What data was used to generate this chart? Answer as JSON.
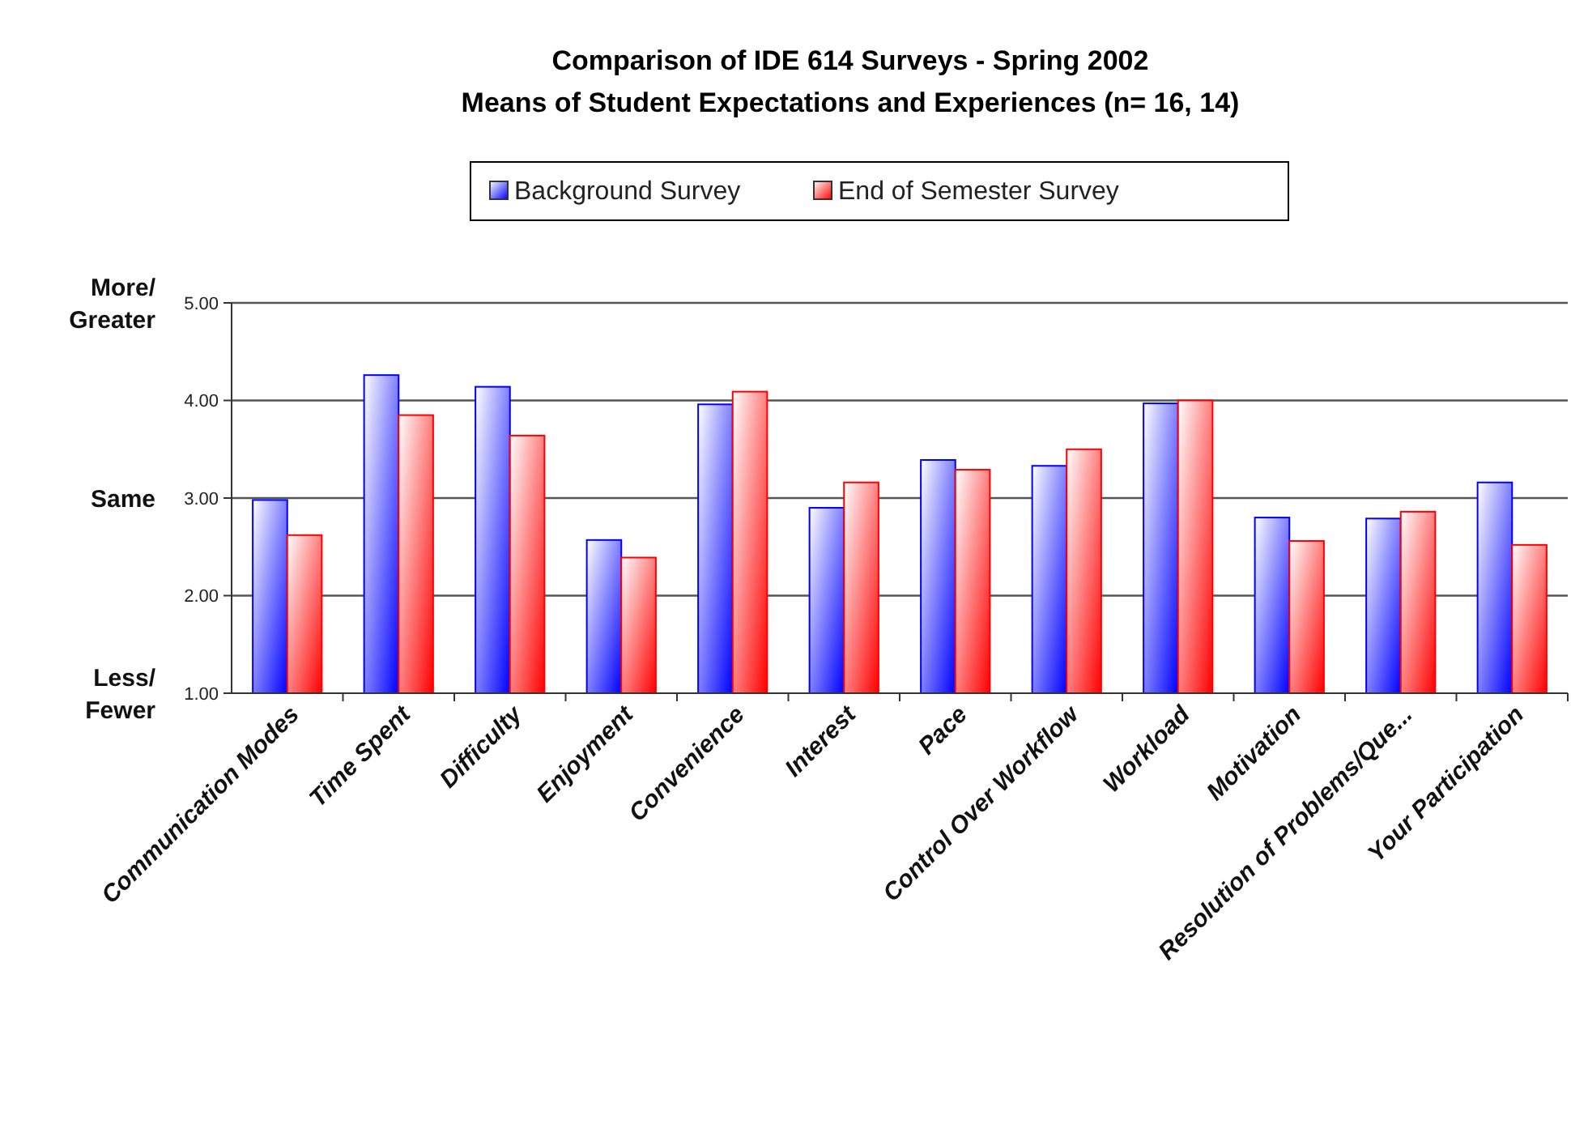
{
  "chart_data": {
    "type": "bar",
    "title": "Comparison of IDE 614 Surveys - Spring 2002",
    "subtitle": "Means of Student Expectations and Experiences (n= 16, 14)",
    "categories": [
      "Communication Modes",
      "Time Spent",
      "Difficulty",
      "Enjoyment",
      "Convenience",
      "Interest",
      "Pace",
      "Control Over Workflow",
      "Workload",
      "Motivation",
      "Resolution of Problems/Que...",
      "Your Participation"
    ],
    "series": [
      {
        "name": "Background Survey",
        "color": "#0000ff",
        "values": [
          2.98,
          4.26,
          4.14,
          2.57,
          3.96,
          2.9,
          3.39,
          3.33,
          3.97,
          2.8,
          2.79,
          3.16
        ]
      },
      {
        "name": "End of Semester Survey",
        "color": "#ff0000",
        "values": [
          2.62,
          3.85,
          3.64,
          2.39,
          4.09,
          3.16,
          3.29,
          3.5,
          4.0,
          2.56,
          2.86,
          2.52
        ]
      }
    ],
    "ylim": [
      1,
      5
    ],
    "yticks": [
      {
        "value": 1,
        "label": "1.00"
      },
      {
        "value": 2,
        "label": "2.00"
      },
      {
        "value": 3,
        "label": "3.00"
      },
      {
        "value": 4,
        "label": "4.00"
      },
      {
        "value": 5,
        "label": "5.00"
      }
    ],
    "grid": "y",
    "legend": "top",
    "annotations": [
      "More/\nGreater",
      "Same",
      "Less/\nFewer"
    ]
  }
}
